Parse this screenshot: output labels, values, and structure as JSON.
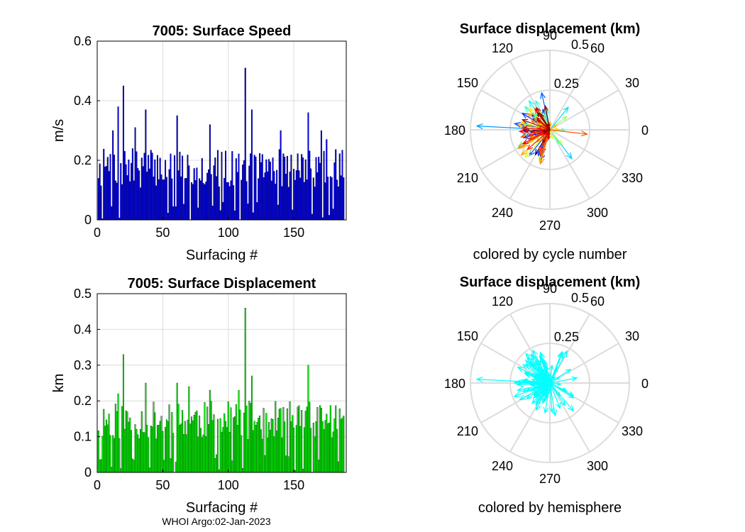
{
  "figure": {
    "footer": "WHOI Argo:02-Jan-2023",
    "colors": {
      "speed_bars": "#0000ff",
      "displacement_bars": "#00ff00",
      "hemisphere_arrows": "#00ffff",
      "grid": "#dcdcdc",
      "axis": "#000000"
    }
  },
  "chart_data": [
    {
      "type": "bar",
      "title": "7005: Surface Speed",
      "xlabel": "Surfacing #",
      "ylabel": "m/s",
      "xlim": [
        0,
        190
      ],
      "ylim": [
        0,
        0.6
      ],
      "xticks": [
        0,
        50,
        100,
        150
      ],
      "yticks": [
        0,
        0.2,
        0.4,
        0.6
      ],
      "ytick_labels": [
        "0",
        "0.2",
        "0.4",
        "0.6"
      ],
      "grid": true,
      "color": "#0000ff",
      "peaks": [
        {
          "x": 20,
          "y": 0.45
        },
        {
          "x": 16,
          "y": 0.38
        },
        {
          "x": 37,
          "y": 0.37
        },
        {
          "x": 113,
          "y": 0.51
        },
        {
          "x": 161,
          "y": 0.36
        },
        {
          "x": 61,
          "y": 0.35
        },
        {
          "x": 118,
          "y": 0.37
        },
        {
          "x": 12,
          "y": 0.3
        },
        {
          "x": 86,
          "y": 0.32
        },
        {
          "x": 140,
          "y": 0.3
        },
        {
          "x": 171,
          "y": 0.3
        },
        {
          "x": 29,
          "y": 0.31
        },
        {
          "x": 175,
          "y": 0.27
        }
      ]
    },
    {
      "type": "bar",
      "title": "7005: Surface Displacement",
      "xlabel": "Surfacing #",
      "ylabel": "km",
      "xlim": [
        0,
        190
      ],
      "ylim": [
        0,
        0.5
      ],
      "xticks": [
        0,
        50,
        100,
        150
      ],
      "yticks": [
        0,
        0.1,
        0.2,
        0.3,
        0.4,
        0.5
      ],
      "ytick_labels": [
        "0",
        "0.1",
        "0.2",
        "0.3",
        "0.4",
        "0.5"
      ],
      "grid": true,
      "color": "#00ff00",
      "peaks": [
        {
          "x": 20,
          "y": 0.33
        },
        {
          "x": 113,
          "y": 0.46
        },
        {
          "x": 161,
          "y": 0.3
        },
        {
          "x": 37,
          "y": 0.25
        },
        {
          "x": 16,
          "y": 0.22
        },
        {
          "x": 61,
          "y": 0.25
        },
        {
          "x": 118,
          "y": 0.27
        },
        {
          "x": 70,
          "y": 0.24
        },
        {
          "x": 86,
          "y": 0.23
        },
        {
          "x": 108,
          "y": 0.23
        },
        {
          "x": 171,
          "y": 0.18
        }
      ]
    },
    {
      "type": "polar-quiver",
      "title": "Surface displacement (km)",
      "caption": "colored by cycle number",
      "rlim": [
        0,
        0.5
      ],
      "rtick_labels": [
        "0.25",
        "0.5"
      ],
      "angle_labels": [
        "0",
        "30",
        "60",
        "90",
        "120",
        "150",
        "180",
        "210",
        "240",
        "270",
        "300",
        "330"
      ],
      "colormap": "jet",
      "max_arrow": {
        "angle_deg": 177,
        "r": 0.46
      }
    },
    {
      "type": "polar-quiver",
      "title": "Surface displacement (km)",
      "caption": "colored by hemisphere",
      "rlim": [
        0,
        0.5
      ],
      "rtick_labels": [
        "0.25",
        "0.5"
      ],
      "angle_labels": [
        "0",
        "30",
        "60",
        "90",
        "120",
        "150",
        "180",
        "210",
        "240",
        "270",
        "300",
        "330"
      ],
      "color": "#00ffff",
      "max_arrow": {
        "angle_deg": 177,
        "r": 0.46
      }
    }
  ]
}
